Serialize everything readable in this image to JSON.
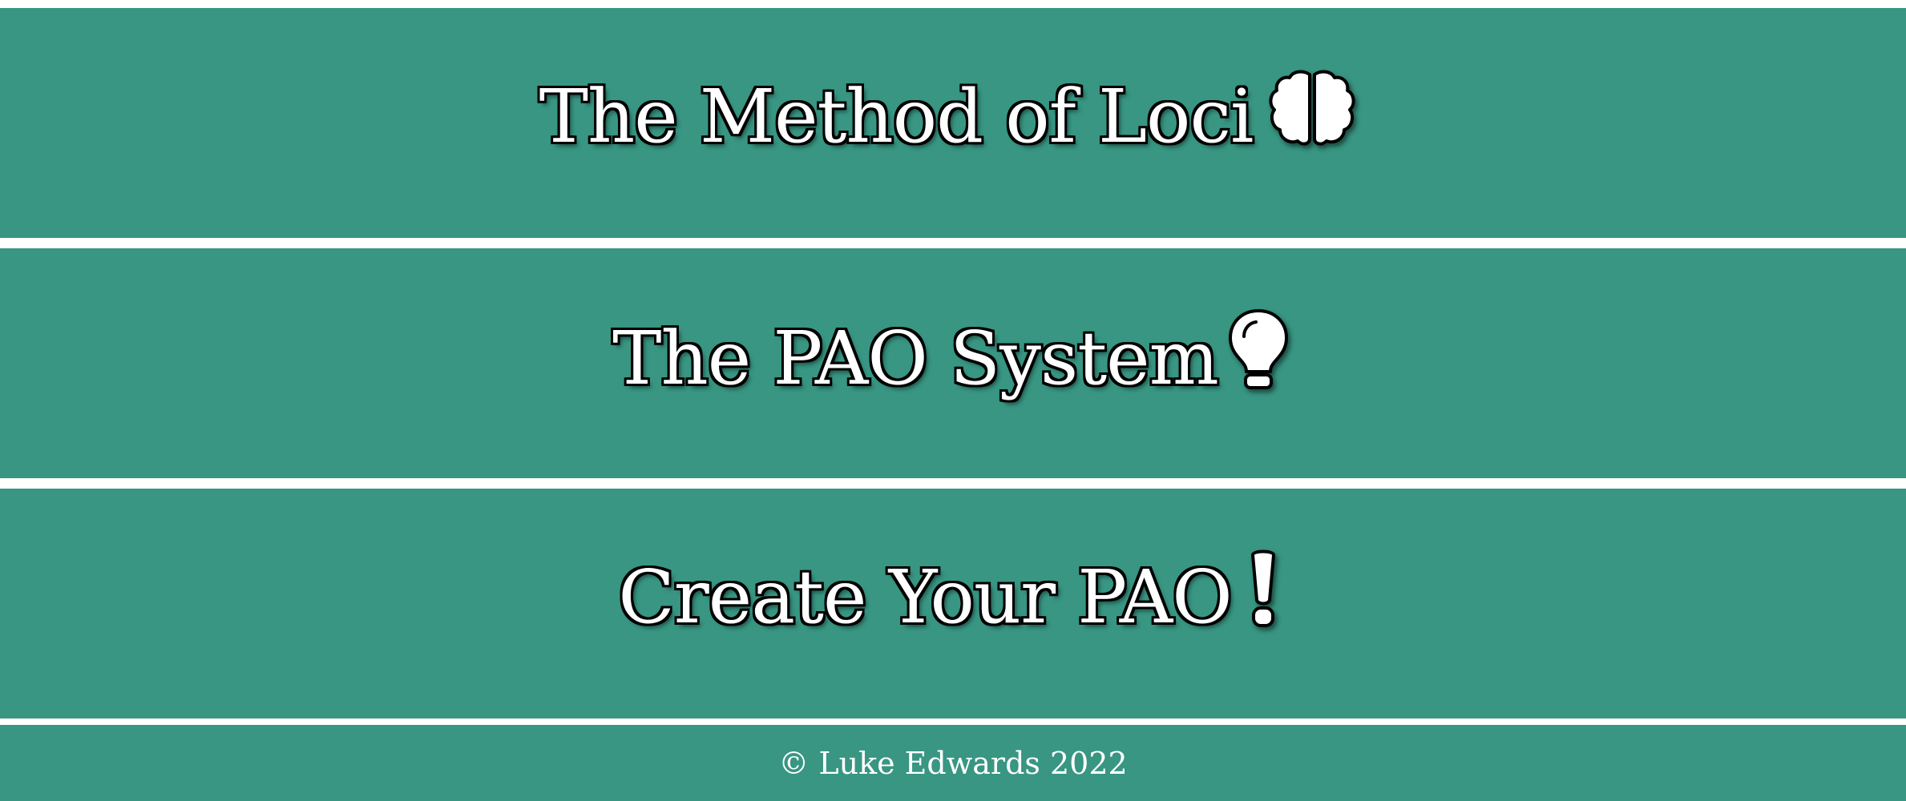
{
  "nav": {
    "items": [
      {
        "label": "The Method of Loci",
        "icon": "brain-icon"
      },
      {
        "label": "The PAO System",
        "icon": "lightbulb-icon"
      },
      {
        "label": "Create Your PAO",
        "icon": "exclamation-icon"
      }
    ]
  },
  "footer": {
    "text": "© Luke Edwards 2022"
  },
  "colors": {
    "band": "#389683",
    "separator": "#ffffff",
    "text": "#ffffff",
    "text_outline": "#000000"
  }
}
